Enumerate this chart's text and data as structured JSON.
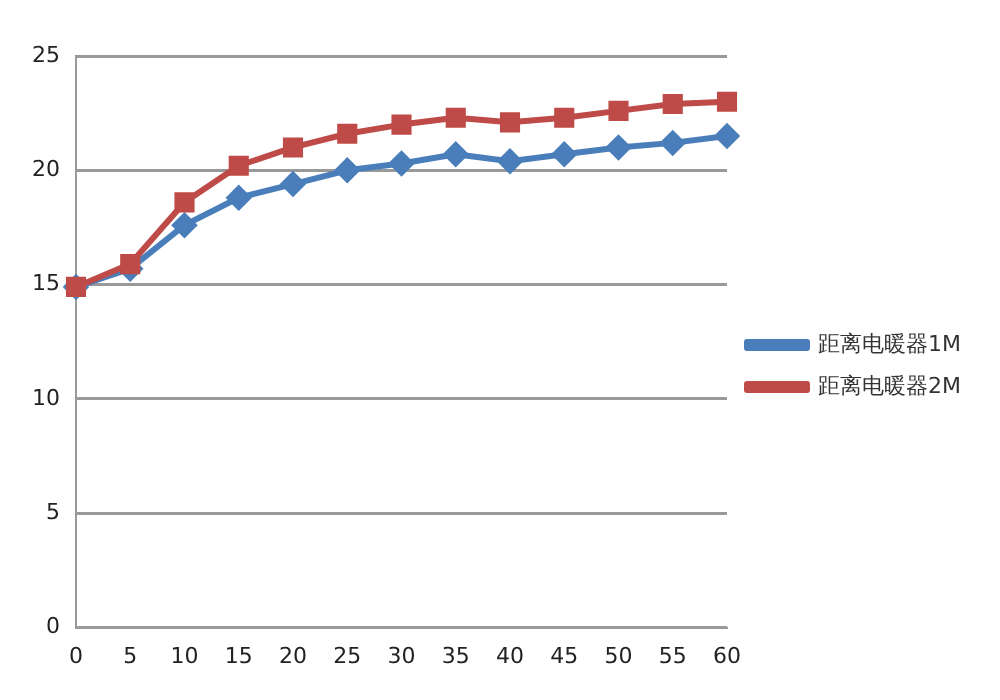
{
  "chart_data": {
    "type": "line",
    "categories": [
      "0",
      "5",
      "10",
      "15",
      "20",
      "25",
      "30",
      "35",
      "40",
      "45",
      "50",
      "55",
      "60"
    ],
    "series": [
      {
        "name": "距离电暖器1M",
        "color": "#4a7ebb",
        "marker": "diamond",
        "values": [
          14.9,
          15.7,
          17.6,
          18.8,
          19.4,
          20.0,
          20.3,
          20.7,
          20.4,
          20.7,
          21.0,
          21.2,
          21.5
        ]
      },
      {
        "name": "距离电暖器2M",
        "color": "#be4b48",
        "marker": "square",
        "values": [
          14.9,
          15.9,
          18.6,
          20.2,
          21.0,
          21.6,
          22.0,
          22.3,
          22.1,
          22.3,
          22.6,
          22.9,
          23.0
        ]
      }
    ],
    "ylim": [
      0,
      25
    ],
    "yticks": [
      0,
      5,
      10,
      15,
      20,
      25
    ],
    "grid": "y",
    "legend": "right",
    "line_style": "solid"
  }
}
